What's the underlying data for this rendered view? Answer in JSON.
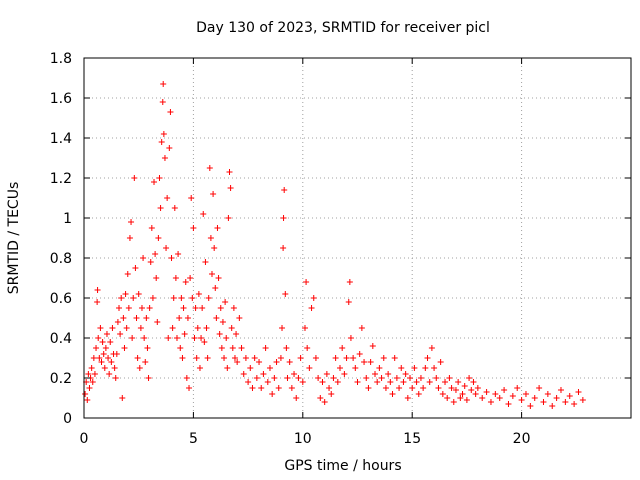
{
  "chart_data": {
    "type": "scatter",
    "title": "Day 130 of 2023, SRMTID for receiver picl",
    "xlabel": "GPS time / hours",
    "ylabel": "SRMTID / TECUs",
    "xlim": [
      0,
      25
    ],
    "ylim": [
      0,
      1.8
    ],
    "xticks": [
      0,
      5,
      10,
      15,
      20
    ],
    "xtick_labels": [
      "0",
      "5",
      "10",
      "15",
      "20"
    ],
    "yticks": [
      0,
      0.2,
      0.4,
      0.6,
      0.8,
      1,
      1.2,
      1.4,
      1.6,
      1.8
    ],
    "ytick_labels": [
      "0",
      "0.2",
      "0.4",
      "0.6",
      "0.8",
      "1",
      "1.2",
      "1.4",
      "1.6",
      "1.8"
    ],
    "grid": true,
    "marker": "plus",
    "color": "#ff0000",
    "series": [
      {
        "name": "SRMTID",
        "points": [
          [
            0.05,
            0.12
          ],
          [
            0.1,
            0.18
          ],
          [
            0.15,
            0.09
          ],
          [
            0.2,
            0.22
          ],
          [
            0.25,
            0.15
          ],
          [
            0.3,
            0.2
          ],
          [
            0.35,
            0.25
          ],
          [
            0.4,
            0.18
          ],
          [
            0.45,
            0.3
          ],
          [
            0.5,
            0.22
          ],
          [
            0.55,
            0.35
          ],
          [
            0.6,
            0.58
          ],
          [
            0.62,
            0.64
          ],
          [
            0.65,
            0.4
          ],
          [
            0.7,
            0.3
          ],
          [
            0.75,
            0.45
          ],
          [
            0.8,
            0.28
          ],
          [
            0.85,
            0.38
          ],
          [
            0.9,
            0.32
          ],
          [
            0.95,
            0.25
          ],
          [
            1.0,
            0.35
          ],
          [
            1.05,
            0.42
          ],
          [
            1.1,
            0.3
          ],
          [
            1.15,
            0.22
          ],
          [
            1.2,
            0.38
          ],
          [
            1.25,
            0.28
          ],
          [
            1.3,
            0.45
          ],
          [
            1.35,
            0.32
          ],
          [
            1.4,
            0.25
          ],
          [
            1.45,
            0.2
          ],
          [
            1.5,
            0.32
          ],
          [
            1.55,
            0.48
          ],
          [
            1.6,
            0.55
          ],
          [
            1.65,
            0.42
          ],
          [
            1.7,
            0.6
          ],
          [
            1.75,
            0.1
          ],
          [
            1.8,
            0.5
          ],
          [
            1.85,
            0.35
          ],
          [
            1.9,
            0.62
          ],
          [
            1.95,
            0.45
          ],
          [
            2.0,
            0.72
          ],
          [
            2.05,
            0.55
          ],
          [
            2.1,
            0.9
          ],
          [
            2.15,
            0.98
          ],
          [
            2.2,
            0.4
          ],
          [
            2.25,
            0.6
          ],
          [
            2.3,
            1.2
          ],
          [
            2.35,
            0.75
          ],
          [
            2.4,
            0.5
          ],
          [
            2.45,
            0.3
          ],
          [
            2.5,
            0.62
          ],
          [
            2.55,
            0.25
          ],
          [
            2.6,
            0.45
          ],
          [
            2.65,
            0.55
          ],
          [
            2.7,
            0.8
          ],
          [
            2.75,
            0.4
          ],
          [
            2.8,
            0.28
          ],
          [
            2.85,
            0.5
          ],
          [
            2.9,
            0.35
          ],
          [
            2.95,
            0.2
          ],
          [
            3.0,
            0.55
          ],
          [
            3.05,
            0.78
          ],
          [
            3.1,
            0.95
          ],
          [
            3.15,
            0.6
          ],
          [
            3.2,
            1.18
          ],
          [
            3.25,
            0.82
          ],
          [
            3.3,
            0.7
          ],
          [
            3.35,
            0.48
          ],
          [
            3.4,
            0.9
          ],
          [
            3.45,
            1.2
          ],
          [
            3.5,
            1.05
          ],
          [
            3.55,
            1.38
          ],
          [
            3.6,
            1.58
          ],
          [
            3.62,
            1.67
          ],
          [
            3.65,
            1.42
          ],
          [
            3.7,
            1.3
          ],
          [
            3.75,
            0.85
          ],
          [
            3.8,
            1.1
          ],
          [
            3.85,
            0.4
          ],
          [
            3.9,
            1.35
          ],
          [
            3.95,
            1.53
          ],
          [
            4.0,
            0.8
          ],
          [
            4.05,
            0.45
          ],
          [
            4.1,
            0.6
          ],
          [
            4.15,
            1.05
          ],
          [
            4.2,
            0.7
          ],
          [
            4.25,
            0.4
          ],
          [
            4.3,
            0.82
          ],
          [
            4.35,
            0.5
          ],
          [
            4.4,
            0.35
          ],
          [
            4.45,
            0.6
          ],
          [
            4.5,
            0.3
          ],
          [
            4.55,
            0.55
          ],
          [
            4.6,
            0.42
          ],
          [
            4.65,
            0.68
          ],
          [
            4.7,
            0.2
          ],
          [
            4.75,
            0.5
          ],
          [
            4.8,
            0.15
          ],
          [
            4.85,
            0.7
          ],
          [
            4.9,
            1.1
          ],
          [
            4.95,
            0.6
          ],
          [
            5.0,
            0.95
          ],
          [
            5.05,
            0.4
          ],
          [
            5.1,
            0.55
          ],
          [
            5.15,
            0.3
          ],
          [
            5.2,
            0.45
          ],
          [
            5.25,
            0.62
          ],
          [
            5.3,
            0.25
          ],
          [
            5.35,
            0.4
          ],
          [
            5.4,
            0.55
          ],
          [
            5.45,
            1.02
          ],
          [
            5.5,
            0.38
          ],
          [
            5.55,
            0.78
          ],
          [
            5.6,
            0.45
          ],
          [
            5.65,
            0.3
          ],
          [
            5.7,
            0.6
          ],
          [
            5.75,
            1.25
          ],
          [
            5.8,
            0.9
          ],
          [
            5.85,
            0.72
          ],
          [
            5.9,
            1.12
          ],
          [
            5.95,
            0.85
          ],
          [
            6.0,
            0.65
          ],
          [
            6.05,
            0.5
          ],
          [
            6.1,
            0.95
          ],
          [
            6.15,
            0.7
          ],
          [
            6.2,
            0.42
          ],
          [
            6.25,
            0.55
          ],
          [
            6.3,
            0.35
          ],
          [
            6.35,
            0.48
          ],
          [
            6.4,
            0.3
          ],
          [
            6.45,
            0.58
          ],
          [
            6.5,
            0.4
          ],
          [
            6.55,
            0.25
          ],
          [
            6.6,
            1.0
          ],
          [
            6.65,
            1.23
          ],
          [
            6.7,
            1.15
          ],
          [
            6.75,
            0.45
          ],
          [
            6.8,
            0.35
          ],
          [
            6.85,
            0.55
          ],
          [
            6.9,
            0.3
          ],
          [
            6.95,
            0.42
          ],
          [
            7.0,
            0.28
          ],
          [
            7.1,
            0.5
          ],
          [
            7.2,
            0.35
          ],
          [
            7.3,
            0.22
          ],
          [
            7.4,
            0.3
          ],
          [
            7.5,
            0.18
          ],
          [
            7.6,
            0.25
          ],
          [
            7.7,
            0.15
          ],
          [
            7.8,
            0.3
          ],
          [
            7.9,
            0.2
          ],
          [
            8.0,
            0.28
          ],
          [
            8.1,
            0.15
          ],
          [
            8.2,
            0.22
          ],
          [
            8.3,
            0.35
          ],
          [
            8.4,
            0.18
          ],
          [
            8.5,
            0.25
          ],
          [
            8.6,
            0.12
          ],
          [
            8.7,
            0.2
          ],
          [
            8.8,
            0.28
          ],
          [
            8.9,
            0.15
          ],
          [
            9.0,
            0.3
          ],
          [
            9.05,
            0.45
          ],
          [
            9.1,
            0.85
          ],
          [
            9.12,
            1.0
          ],
          [
            9.15,
            1.14
          ],
          [
            9.2,
            0.62
          ],
          [
            9.25,
            0.35
          ],
          [
            9.3,
            0.2
          ],
          [
            9.4,
            0.28
          ],
          [
            9.5,
            0.15
          ],
          [
            9.6,
            0.22
          ],
          [
            9.7,
            0.1
          ],
          [
            9.8,
            0.2
          ],
          [
            9.9,
            0.3
          ],
          [
            10.0,
            0.18
          ],
          [
            10.1,
            0.45
          ],
          [
            10.15,
            0.68
          ],
          [
            10.2,
            0.35
          ],
          [
            10.3,
            0.25
          ],
          [
            10.4,
            0.55
          ],
          [
            10.5,
            0.6
          ],
          [
            10.6,
            0.3
          ],
          [
            10.7,
            0.2
          ],
          [
            10.8,
            0.1
          ],
          [
            10.9,
            0.18
          ],
          [
            11.0,
            0.08
          ],
          [
            11.1,
            0.22
          ],
          [
            11.2,
            0.15
          ],
          [
            11.3,
            0.12
          ],
          [
            11.4,
            0.2
          ],
          [
            11.5,
            0.3
          ],
          [
            11.6,
            0.18
          ],
          [
            11.7,
            0.25
          ],
          [
            11.8,
            0.35
          ],
          [
            11.9,
            0.22
          ],
          [
            12.0,
            0.3
          ],
          [
            12.1,
            0.58
          ],
          [
            12.15,
            0.68
          ],
          [
            12.2,
            0.4
          ],
          [
            12.3,
            0.3
          ],
          [
            12.4,
            0.25
          ],
          [
            12.5,
            0.18
          ],
          [
            12.6,
            0.32
          ],
          [
            12.7,
            0.45
          ],
          [
            12.8,
            0.28
          ],
          [
            12.9,
            0.2
          ],
          [
            13.0,
            0.15
          ],
          [
            13.1,
            0.28
          ],
          [
            13.2,
            0.36
          ],
          [
            13.3,
            0.22
          ],
          [
            13.4,
            0.18
          ],
          [
            13.5,
            0.25
          ],
          [
            13.6,
            0.2
          ],
          [
            13.7,
            0.3
          ],
          [
            13.8,
            0.15
          ],
          [
            13.9,
            0.22
          ],
          [
            14.0,
            0.18
          ],
          [
            14.1,
            0.12
          ],
          [
            14.2,
            0.3
          ],
          [
            14.3,
            0.2
          ],
          [
            14.4,
            0.15
          ],
          [
            14.5,
            0.25
          ],
          [
            14.6,
            0.18
          ],
          [
            14.7,
            0.22
          ],
          [
            14.8,
            0.1
          ],
          [
            14.9,
            0.2
          ],
          [
            15.0,
            0.15
          ],
          [
            15.1,
            0.25
          ],
          [
            15.2,
            0.18
          ],
          [
            15.3,
            0.12
          ],
          [
            15.4,
            0.2
          ],
          [
            15.5,
            0.15
          ],
          [
            15.6,
            0.25
          ],
          [
            15.7,
            0.3
          ],
          [
            15.8,
            0.18
          ],
          [
            15.9,
            0.35
          ],
          [
            16.0,
            0.25
          ],
          [
            16.1,
            0.2
          ],
          [
            16.2,
            0.15
          ],
          [
            16.3,
            0.28
          ],
          [
            16.4,
            0.12
          ],
          [
            16.5,
            0.18
          ],
          [
            16.6,
            0.1
          ],
          [
            16.7,
            0.2
          ],
          [
            16.8,
            0.15
          ],
          [
            16.9,
            0.08
          ],
          [
            17.0,
            0.14
          ],
          [
            17.1,
            0.18
          ],
          [
            17.2,
            0.1
          ],
          [
            17.3,
            0.12
          ],
          [
            17.4,
            0.16
          ],
          [
            17.5,
            0.09
          ],
          [
            17.6,
            0.2
          ],
          [
            17.7,
            0.14
          ],
          [
            17.8,
            0.18
          ],
          [
            17.9,
            0.12
          ],
          [
            18.0,
            0.15
          ],
          [
            18.2,
            0.1
          ],
          [
            18.4,
            0.13
          ],
          [
            18.6,
            0.08
          ],
          [
            18.8,
            0.12
          ],
          [
            19.0,
            0.1
          ],
          [
            19.2,
            0.14
          ],
          [
            19.4,
            0.07
          ],
          [
            19.6,
            0.11
          ],
          [
            19.8,
            0.15
          ],
          [
            20.0,
            0.09
          ],
          [
            20.2,
            0.12
          ],
          [
            20.4,
            0.06
          ],
          [
            20.6,
            0.1
          ],
          [
            20.8,
            0.15
          ],
          [
            21.0,
            0.08
          ],
          [
            21.2,
            0.12
          ],
          [
            21.4,
            0.06
          ],
          [
            21.6,
            0.1
          ],
          [
            21.8,
            0.14
          ],
          [
            22.0,
            0.08
          ],
          [
            22.2,
            0.11
          ],
          [
            22.4,
            0.07
          ],
          [
            22.6,
            0.13
          ],
          [
            22.8,
            0.09
          ]
        ]
      }
    ]
  }
}
